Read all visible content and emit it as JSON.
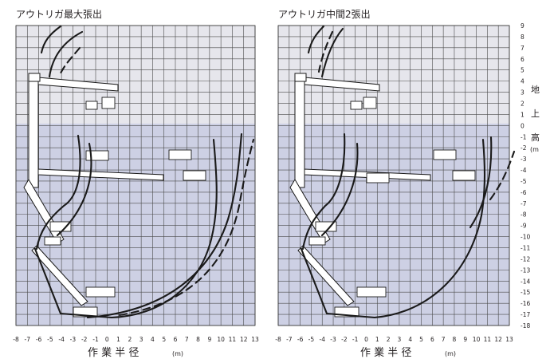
{
  "panels": [
    {
      "title": "アウトリガ最大張出"
    },
    {
      "title": "アウトリガ中間2張出"
    }
  ],
  "x_ticks": [
    "-8",
    "-7",
    "-6",
    "-5",
    "-4",
    "-3",
    "-2",
    "-1",
    "0",
    "1",
    "2",
    "3",
    "4",
    "5",
    "6",
    "7",
    "8",
    "9",
    "10",
    "11",
    "12",
    "13"
  ],
  "y_ticks": [
    "9",
    "8",
    "7",
    "6",
    "5",
    "4",
    "3",
    "2",
    "1",
    "0",
    "-1",
    "-2",
    "-3",
    "-4",
    "-5",
    "-6",
    "-7",
    "-8",
    "-9",
    "-10",
    "-11",
    "-12",
    "-13",
    "-14",
    "-15",
    "-16",
    "-17",
    "-18"
  ],
  "x_axis_title": "作 業 半 径",
  "x_axis_unit": "(m)",
  "y_axis_title_chars": [
    "地",
    "上",
    "高"
  ],
  "y_axis_unit": "(m",
  "colors": {
    "above_ground": "#e6e6ec",
    "below_ground": "#cdd0e4",
    "grid": "#4a4a4a",
    "curve": "#1a1a1a"
  }
}
